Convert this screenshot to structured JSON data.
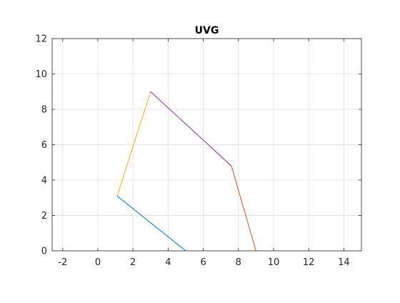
{
  "chart_data": {
    "type": "line",
    "title": "UVG",
    "xlabel": "",
    "ylabel": "",
    "xlim": [
      -2.6,
      15
    ],
    "ylim": [
      0,
      12
    ],
    "xticks": [
      -2,
      0,
      2,
      4,
      6,
      8,
      10,
      12,
      14
    ],
    "yticks": [
      0,
      2,
      4,
      6,
      8,
      10,
      12
    ],
    "grid": true,
    "background": "#ffffff",
    "series": [
      {
        "x": [
          5,
          1.1
        ],
        "y": [
          0,
          3.1
        ],
        "color": "#0072BD"
      },
      {
        "x": [
          1.1,
          3
        ],
        "y": [
          3.1,
          9
        ],
        "color": "#EDB120"
      },
      {
        "x": [
          3,
          7.6
        ],
        "y": [
          9,
          4.8
        ],
        "color": "#7E2F8E"
      },
      {
        "x": [
          7.6,
          9
        ],
        "y": [
          4.8,
          0
        ],
        "color": "#D95319"
      }
    ]
  }
}
